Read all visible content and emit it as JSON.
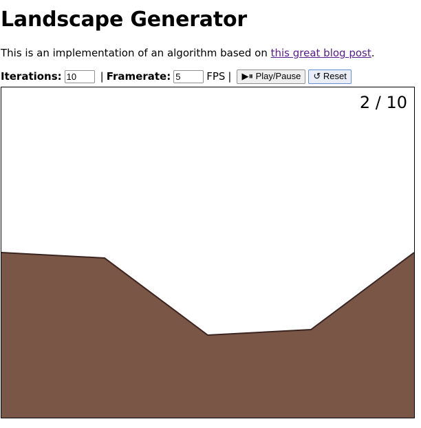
{
  "page": {
    "title": "Landscape Generator",
    "intro_prefix": "This is an implementation of an algorithm based on ",
    "intro_link": "this great blog post",
    "intro_suffix": "."
  },
  "controls": {
    "iterations_label": "Iterations:",
    "iterations_value": "10",
    "separator": "|",
    "framerate_label": "Framerate:",
    "framerate_value": "5",
    "fps_label": "FPS",
    "play_pause_label": "▶⏸ Play/Pause",
    "reset_label": "↺ Reset"
  },
  "canvas": {
    "counter": "2 / 10",
    "terrain_color": "#7a5646",
    "outline_color": "#3a2420"
  }
}
